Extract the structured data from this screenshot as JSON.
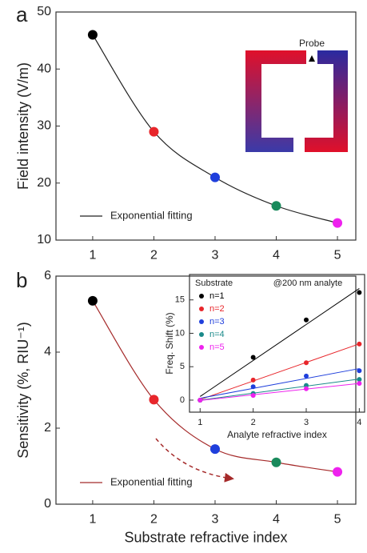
{
  "chart_data": [
    {
      "type": "scatter",
      "panel_label": "a",
      "x": [
        1,
        2,
        3,
        4,
        5
      ],
      "values": [
        46,
        29,
        21,
        16,
        13
      ],
      "colors": [
        "#000000",
        "#e8262b",
        "#1f3fdc",
        "#1a8a5c",
        "#ee22ee"
      ],
      "xlim": [
        0.4,
        5.3
      ],
      "xticks": [
        1,
        2,
        3,
        4,
        5
      ],
      "ylim": [
        10,
        50
      ],
      "yticks": [
        10,
        20,
        30,
        40,
        50
      ],
      "ylabel": "Field intensity (V/m)",
      "fit": {
        "name": "Exponential fitting",
        "color": "#222222"
      },
      "annotation": "Probe"
    },
    {
      "type": "scatter",
      "panel_label": "b",
      "x": [
        1,
        2,
        3,
        4,
        5
      ],
      "values": [
        5.35,
        2.75,
        1.45,
        1.1,
        0.85
      ],
      "colors": [
        "#000000",
        "#e8262b",
        "#1f3fdc",
        "#1a8a5c",
        "#ee22ee"
      ],
      "xlim": [
        0.4,
        5.3
      ],
      "xticks": [
        1,
        2,
        3,
        4,
        5
      ],
      "ylim": [
        0,
        6
      ],
      "yticks": [
        0,
        2,
        4,
        6
      ],
      "xlabel": "Substrate refractive index",
      "ylabel": "Sensitivity (%, RIU⁻¹)",
      "fit": {
        "name": "Exponential fitting",
        "color": "#a52a2a"
      }
    },
    {
      "type": "line",
      "title": "Substrate",
      "annotation": "@200 nm analyte",
      "x": [
        1,
        2,
        3,
        4
      ],
      "series": [
        {
          "name": "n=1",
          "color": "#000000",
          "values": [
            0,
            6.4,
            12,
            16.1
          ]
        },
        {
          "name": "n=2",
          "color": "#e8262b",
          "values": [
            0,
            3,
            5.6,
            8.4
          ]
        },
        {
          "name": "n=3",
          "color": "#1f3fdc",
          "values": [
            0,
            2,
            3.6,
            4.4
          ]
        },
        {
          "name": "n=4",
          "color": "#1a8a8a",
          "values": [
            0,
            1,
            2.2,
            3.1
          ]
        },
        {
          "name": "n=5",
          "color": "#ee22ee",
          "values": [
            0,
            0.7,
            1.7,
            2.5
          ]
        }
      ],
      "xlim": [
        0.8,
        4.1
      ],
      "xticks": [
        1,
        2,
        3,
        4
      ],
      "ylim": [
        -1.8,
        18.8
      ],
      "yticks": [
        0,
        5,
        10,
        15
      ],
      "xlabel": "Analyte refractive index",
      "ylabel": "Freq. Shift (%)"
    }
  ]
}
